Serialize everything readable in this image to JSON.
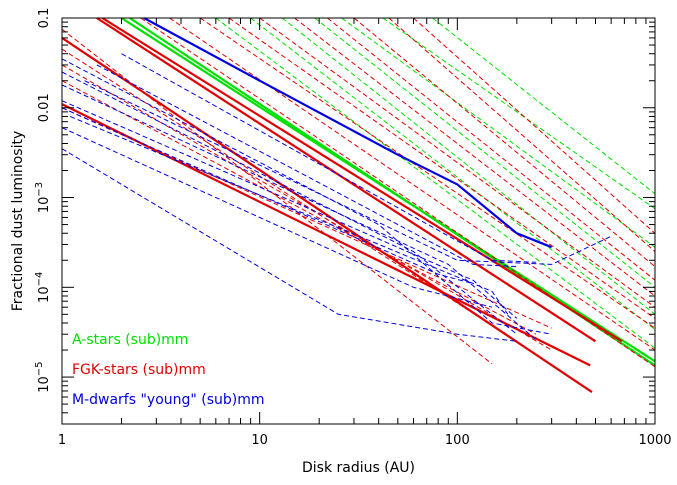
{
  "chart_data": {
    "type": "line",
    "title": "",
    "xlabel": "Disk radius (AU)",
    "ylabel": "Fractional dust luminosity",
    "xscale": "log",
    "yscale": "log",
    "xlim": [
      1,
      1000
    ],
    "ylim": [
      3e-06,
      0.1
    ],
    "grid": false,
    "legend_position": "bottom-left",
    "x_ticks": [
      {
        "value": 1,
        "label": "1"
      },
      {
        "value": 10,
        "label": "10"
      },
      {
        "value": 100,
        "label": "100"
      },
      {
        "value": 1000,
        "label": "1000"
      }
    ],
    "y_ticks": [
      {
        "value": 0.1,
        "base": "0.1",
        "exp": ""
      },
      {
        "value": 0.01,
        "base": "0.01",
        "exp": ""
      },
      {
        "value": 0.001,
        "base": "10",
        "exp": "−3"
      },
      {
        "value": 0.0001,
        "base": "10",
        "exp": "−4"
      },
      {
        "value": 1e-05,
        "base": "10",
        "exp": "−5"
      }
    ],
    "legend": [
      {
        "label": "A-stars (sub)mm",
        "color": "#00e000"
      },
      {
        "label": "FGK-stars (sub)mm",
        "color": "#e00000"
      },
      {
        "label": "M-dwarfs \"young\" (sub)mm",
        "color": "#0000e0"
      }
    ],
    "colors": {
      "a_stars": "#00e000",
      "fgk_stars": "#e00000",
      "m_dwarfs": "#0000e0"
    },
    "series": [
      {
        "group": "a_stars",
        "style": "solid",
        "points": [
          [
            2.0,
            0.1
          ],
          [
            1000,
            1.5e-05
          ]
        ]
      },
      {
        "group": "a_stars",
        "style": "solid",
        "points": [
          [
            2.2,
            0.1
          ],
          [
            1000,
            1.35e-05
          ]
        ]
      },
      {
        "group": "a_stars",
        "style": "dashed",
        "points": [
          [
            13,
            0.1
          ],
          [
            1000,
            5e-05
          ]
        ]
      },
      {
        "group": "a_stars",
        "style": "dashed",
        "points": [
          [
            19,
            0.1
          ],
          [
            1000,
            0.0001
          ]
        ]
      },
      {
        "group": "a_stars",
        "style": "dashed",
        "points": [
          [
            26,
            0.1
          ],
          [
            1000,
            0.00028
          ]
        ]
      },
      {
        "group": "a_stars",
        "style": "dashed",
        "points": [
          [
            42,
            0.1
          ],
          [
            1000,
            0.00075
          ]
        ]
      },
      {
        "group": "a_stars",
        "style": "dashed",
        "points": [
          [
            75,
            0.1
          ],
          [
            1000,
            0.0011
          ]
        ]
      },
      {
        "group": "a_stars",
        "style": "dashed",
        "points": [
          [
            9,
            0.1
          ],
          [
            1000,
            3.4e-05
          ]
        ]
      },
      {
        "group": "a_stars",
        "style": "dashed",
        "points": [
          [
            6,
            0.1
          ],
          [
            1000,
            2.1e-05
          ]
        ]
      },
      {
        "group": "fgk_stars",
        "style": "solid",
        "points": [
          [
            1.0,
            0.06
          ],
          [
            480,
            6.8e-06
          ]
        ]
      },
      {
        "group": "fgk_stars",
        "style": "solid",
        "points": [
          [
            1.0,
            0.011
          ],
          [
            470,
            1.35e-05
          ]
        ]
      },
      {
        "group": "fgk_stars",
        "style": "solid",
        "points": [
          [
            1.6,
            0.1
          ],
          [
            680,
            2.5e-05
          ]
        ]
      },
      {
        "group": "fgk_stars",
        "style": "solid",
        "points": [
          [
            1.5,
            0.1
          ],
          [
            500,
            2.5e-05
          ]
        ]
      },
      {
        "group": "fgk_stars",
        "style": "dashed",
        "points": [
          [
            1.0,
            0.075
          ],
          [
            150,
            1.4e-05
          ]
        ]
      },
      {
        "group": "fgk_stars",
        "style": "dashed",
        "points": [
          [
            1.0,
            0.045
          ],
          [
            200,
            2.5e-05
          ]
        ]
      },
      {
        "group": "fgk_stars",
        "style": "dashed",
        "points": [
          [
            1.0,
            0.03
          ],
          [
            300,
            2e-05
          ]
        ]
      },
      {
        "group": "fgk_stars",
        "style": "dashed",
        "points": [
          [
            1.0,
            0.02
          ],
          [
            250,
            3e-05
          ]
        ]
      },
      {
        "group": "fgk_stars",
        "style": "dashed",
        "points": [
          [
            2.5,
            0.1
          ],
          [
            1000,
            1.3e-05
          ]
        ]
      },
      {
        "group": "fgk_stars",
        "style": "dashed",
        "points": [
          [
            3.5,
            0.1
          ],
          [
            1000,
            2e-05
          ]
        ]
      },
      {
        "group": "fgk_stars",
        "style": "dashed",
        "points": [
          [
            5.0,
            0.1
          ],
          [
            1000,
            3.5e-05
          ]
        ]
      },
      {
        "group": "fgk_stars",
        "style": "dashed",
        "points": [
          [
            7.0,
            0.1
          ],
          [
            1000,
            4.5e-05
          ]
        ]
      },
      {
        "group": "fgk_stars",
        "style": "dashed",
        "points": [
          [
            10,
            0.1
          ],
          [
            1000,
            6e-05
          ]
        ]
      },
      {
        "group": "fgk_stars",
        "style": "dashed",
        "points": [
          [
            15,
            0.1
          ],
          [
            1000,
            8e-05
          ]
        ]
      },
      {
        "group": "fgk_stars",
        "style": "dashed",
        "points": [
          [
            22,
            0.1
          ],
          [
            1000,
            0.00012
          ]
        ]
      },
      {
        "group": "fgk_stars",
        "style": "dashed",
        "points": [
          [
            30,
            0.1
          ],
          [
            1000,
            0.00017
          ]
        ]
      },
      {
        "group": "fgk_stars",
        "style": "dashed",
        "points": [
          [
            45,
            0.1
          ],
          [
            1000,
            0.00025
          ]
        ]
      },
      {
        "group": "fgk_stars",
        "style": "dashed",
        "points": [
          [
            60,
            0.1
          ],
          [
            1000,
            0.0004
          ]
        ]
      },
      {
        "group": "fgk_stars",
        "style": "dashed",
        "points": [
          [
            1.0,
            0.01
          ],
          [
            300,
            3.5e-05
          ]
        ]
      },
      {
        "group": "m_dwarfs",
        "style": "solid",
        "points": [
          [
            2.6,
            0.1
          ],
          [
            10,
            0.02
          ],
          [
            50,
            0.003
          ],
          [
            100,
            0.0014
          ],
          [
            200,
            0.0004
          ],
          [
            300,
            0.00028
          ]
        ]
      },
      {
        "group": "m_dwarfs",
        "style": "dashed",
        "points": [
          [
            1.0,
            0.035
          ],
          [
            40,
            0.0005
          ],
          [
            150,
            4e-05
          ],
          [
            300,
            3e-05
          ]
        ]
      },
      {
        "group": "m_dwarfs",
        "style": "dashed",
        "points": [
          [
            1.0,
            0.025
          ],
          [
            60,
            0.00025
          ],
          [
            200,
            3e-05
          ]
        ]
      },
      {
        "group": "m_dwarfs",
        "style": "dashed",
        "points": [
          [
            1.0,
            0.018
          ],
          [
            90,
            0.00018
          ],
          [
            250,
            2.6e-05
          ]
        ]
      },
      {
        "group": "m_dwarfs",
        "style": "dashed",
        "points": [
          [
            1.0,
            0.012
          ],
          [
            120,
            0.00012
          ],
          [
            200,
            4.5e-05
          ]
        ]
      },
      {
        "group": "m_dwarfs",
        "style": "dashed",
        "points": [
          [
            1.1,
            0.008
          ],
          [
            150,
            9e-05
          ],
          [
            180,
            5e-05
          ]
        ]
      },
      {
        "group": "m_dwarfs",
        "style": "dashed",
        "points": [
          [
            1.0,
            0.0035
          ],
          [
            25,
            5e-05
          ],
          [
            100,
            3e-05
          ],
          [
            200,
            2.5e-05
          ]
        ]
      },
      {
        "group": "m_dwarfs",
        "style": "dashed",
        "points": [
          [
            1.0,
            0.006
          ],
          [
            60,
            0.0001
          ],
          [
            150,
            6e-05
          ]
        ]
      },
      {
        "group": "m_dwarfs",
        "style": "dashed",
        "points": [
          [
            1.3,
            0.02
          ],
          [
            100,
            0.0002
          ],
          [
            300,
            0.00018
          ],
          [
            600,
            0.00037
          ]
        ]
      },
      {
        "group": "m_dwarfs",
        "style": "dashed",
        "points": [
          [
            1.5,
            0.03
          ],
          [
            120,
            0.00018
          ],
          [
            200,
            0.00017
          ]
        ]
      },
      {
        "group": "m_dwarfs",
        "style": "dashed",
        "points": [
          [
            2.0,
            0.04
          ],
          [
            150,
            0.0002
          ],
          [
            250,
            0.00019
          ]
        ]
      },
      {
        "group": "m_dwarfs",
        "style": "dashed",
        "points": [
          [
            1.0,
            0.01
          ],
          [
            80,
            0.00014
          ],
          [
            120,
            0.00011
          ]
        ]
      }
    ]
  }
}
